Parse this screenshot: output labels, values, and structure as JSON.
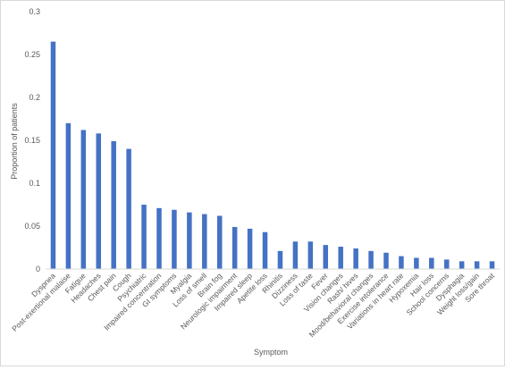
{
  "chart_data": {
    "type": "bar",
    "title": "",
    "xlabel": "Symptom",
    "ylabel": "Proportion of patients",
    "ylim": [
      0,
      0.3
    ],
    "yticks": [
      "0",
      "0.05",
      "0.1",
      "0.15",
      "0.2",
      "0.25",
      "0.3"
    ],
    "grid": false,
    "legend": "none",
    "bar_color": "#4472c4",
    "categories": [
      "Dyspnea",
      "Post-exertional malaise",
      "Fatigue",
      "Headaches",
      "Chest pain",
      "Cough",
      "Psychiatric",
      "Impaired concentration",
      "GI symptoms",
      "Myalgia",
      "Loss of smell",
      "Brain fog",
      "Neurologic impairment",
      "Impaired sleep",
      "Apetite loss",
      "Rhinitis",
      "Dizziness",
      "Loss of taste",
      "Fever",
      "Vision changes",
      "Rash/ hives",
      "Mood/behavioral changes",
      "Exercise intolerance",
      "Variations in heart rate",
      "Hypoxemia",
      "Hair loss",
      "School concerns",
      "Dysphagia",
      "Weight loss/gain",
      "Sore throat"
    ],
    "values": [
      0.265,
      0.17,
      0.162,
      0.158,
      0.149,
      0.14,
      0.075,
      0.071,
      0.069,
      0.066,
      0.064,
      0.062,
      0.049,
      0.047,
      0.043,
      0.021,
      0.032,
      0.032,
      0.028,
      0.026,
      0.024,
      0.021,
      0.019,
      0.015,
      0.013,
      0.013,
      0.011,
      0.009,
      0.009,
      0.009
    ]
  }
}
